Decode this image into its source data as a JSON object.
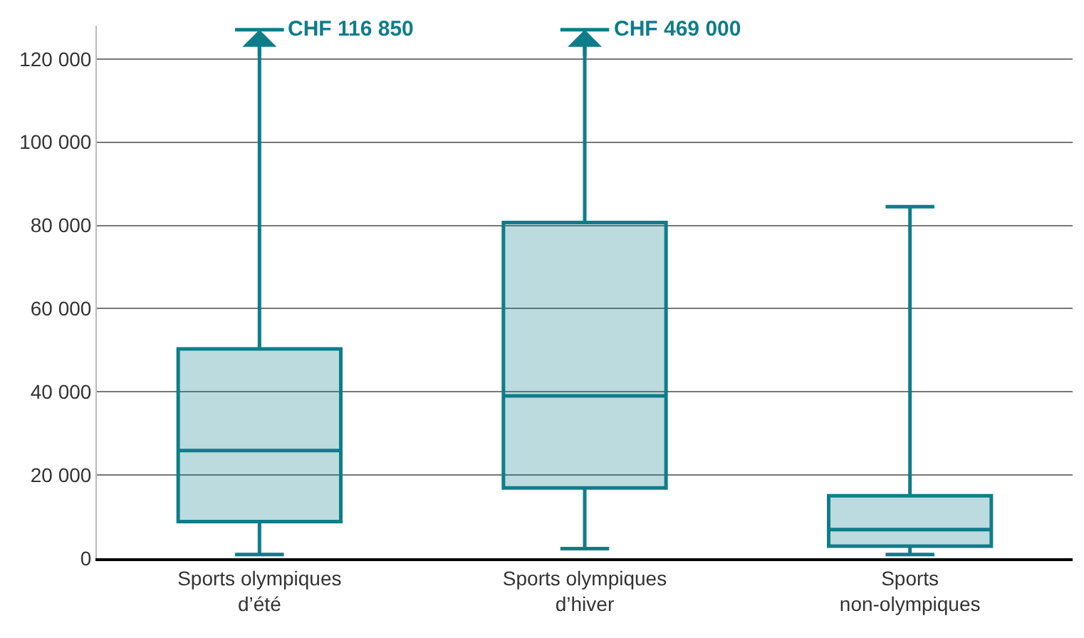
{
  "chart_data": {
    "type": "box",
    "categories": [
      "Sports olympiques\nd’été",
      "Sports olympiques\nd’hiver",
      "Sports\nnon-olympiques"
    ],
    "boxes": [
      {
        "low": 900,
        "q1": 8800,
        "median": 25900,
        "q3": 50300,
        "high": 127000
      },
      {
        "low": 2300,
        "q1": 16900,
        "median": 39000,
        "q3": 80700,
        "high": 127000
      },
      {
        "low": 900,
        "q1": 2900,
        "median": 6900,
        "q3": 15000,
        "high": 84500
      }
    ],
    "color": "#0e7d8a",
    "ylim": [
      0,
      128000
    ],
    "yticks": [
      {
        "value": 0,
        "label": "0"
      },
      {
        "value": 20000,
        "label": "20 000"
      },
      {
        "value": 40000,
        "label": "40 000"
      },
      {
        "value": 60000,
        "label": "60 000"
      },
      {
        "value": 80000,
        "label": "80 000"
      },
      {
        "value": 100000,
        "label": "100 000"
      },
      {
        "value": 120000,
        "label": "120 000"
      }
    ],
    "grid": "y",
    "legend": false,
    "annotations": [
      {
        "text": "CHF 116 850",
        "x": "Sports olympiques\nd’été",
        "y": 127000
      },
      {
        "text": "CHF 469 000",
        "x": "Sports olympiques\nd’hiver",
        "y": 127000
      }
    ]
  }
}
